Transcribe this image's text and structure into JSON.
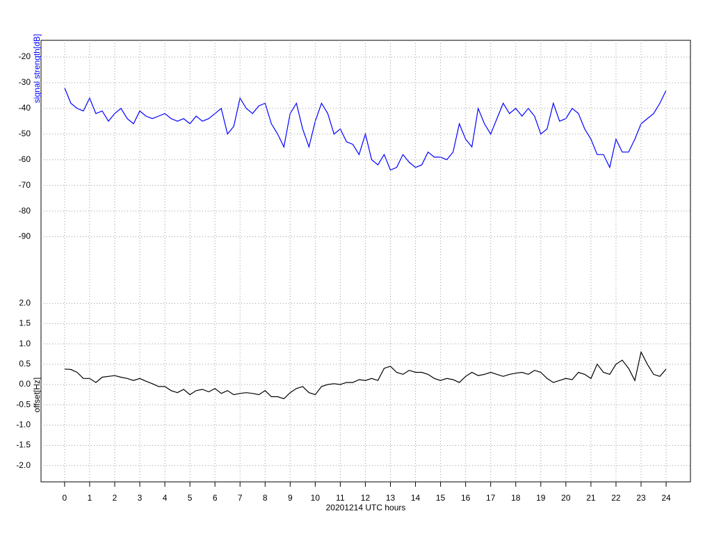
{
  "chart_data": [
    {
      "type": "line",
      "ylabel": "signal strength[dB]",
      "ylabel_color": "#0000ff",
      "grid": true,
      "xlim": [
        -0.94,
        24.97
      ],
      "ylim": [
        -95,
        -13.5
      ],
      "yticks": [
        -20,
        -30,
        -40,
        -50,
        -60,
        -70,
        -80,
        -90
      ],
      "x": [
        0,
        0.25,
        0.5,
        0.75,
        1,
        1.25,
        1.5,
        1.75,
        2,
        2.25,
        2.5,
        2.75,
        3,
        3.25,
        3.5,
        3.75,
        4,
        4.25,
        4.5,
        4.75,
        5,
        5.25,
        5.5,
        5.75,
        6,
        6.25,
        6.5,
        6.75,
        7,
        7.25,
        7.5,
        7.75,
        8,
        8.25,
        8.5,
        8.75,
        9,
        9.25,
        9.5,
        9.75,
        10,
        10.25,
        10.5,
        10.75,
        11,
        11.25,
        11.5,
        11.75,
        12,
        12.25,
        12.5,
        12.75,
        13,
        13.25,
        13.5,
        13.75,
        14,
        14.25,
        14.5,
        14.75,
        15,
        15.25,
        15.5,
        15.75,
        16,
        16.25,
        16.5,
        16.75,
        17,
        17.25,
        17.5,
        17.75,
        18,
        18.25,
        18.5,
        18.75,
        19,
        19.25,
        19.5,
        19.75,
        20,
        20.25,
        20.5,
        20.75,
        21,
        21.25,
        21.5,
        21.75,
        22,
        22.25,
        22.5,
        22.75,
        23,
        23.25,
        23.5,
        23.75,
        24
      ],
      "series": [
        {
          "color": "#0000ff",
          "values": [
            -32,
            -38,
            -40,
            -41,
            -36,
            -42,
            -41,
            -45,
            -42,
            -40,
            -44,
            -46,
            -41,
            -43,
            -44,
            -43,
            -42,
            -44,
            -45,
            -44,
            -46,
            -43,
            -45,
            -44,
            -42,
            -40,
            -50,
            -47,
            -36,
            -40,
            -42,
            -39,
            -38,
            -46,
            -50,
            -55,
            -42,
            -38,
            -48,
            -55,
            -45,
            -38,
            -42,
            -50,
            -48,
            -53,
            -54,
            -58,
            -50,
            -60,
            -62,
            -58,
            -64,
            -63,
            -58,
            -61,
            -63,
            -62,
            -57,
            -59,
            -59,
            -60,
            -57,
            -46,
            -52,
            -55,
            -40,
            -46,
            -50,
            -44,
            -38,
            -42,
            -40,
            -43,
            -40,
            -43,
            -50,
            -48,
            -38,
            -45,
            -44,
            -40,
            -42,
            -48,
            -52,
            -58,
            -58,
            -63,
            -52,
            -57,
            -57,
            -52,
            -46,
            -44,
            -42,
            -38,
            -33
          ]
        }
      ]
    },
    {
      "type": "line",
      "ylabel": "offset[Hz]",
      "ylabel_color": "#000000",
      "xlabel": "20201214 UTC hours",
      "grid": true,
      "xlim": [
        -0.94,
        24.97
      ],
      "xticks": [
        0,
        1,
        2,
        3,
        4,
        5,
        6,
        7,
        8,
        9,
        10,
        11,
        12,
        13,
        14,
        15,
        16,
        17,
        18,
        19,
        20,
        21,
        22,
        23,
        24
      ],
      "ylim": [
        -2.4,
        2.4
      ],
      "yticks": [
        {
          "value": 2,
          "label": "2.0"
        },
        1.5,
        {
          "value": 1,
          "label": "1.0"
        },
        0.5,
        {
          "value": 0,
          "label": "0.0"
        },
        -0.5,
        {
          "value": -1,
          "label": "-1.0"
        },
        -1.5,
        {
          "value": -2,
          "label": "-2.0"
        }
      ],
      "x": [
        0,
        0.25,
        0.5,
        0.75,
        1,
        1.25,
        1.5,
        1.75,
        2,
        2.25,
        2.5,
        2.75,
        3,
        3.25,
        3.5,
        3.75,
        4,
        4.25,
        4.5,
        4.75,
        5,
        5.25,
        5.5,
        5.75,
        6,
        6.25,
        6.5,
        6.75,
        7,
        7.25,
        7.5,
        7.75,
        8,
        8.25,
        8.5,
        8.75,
        9,
        9.25,
        9.5,
        9.75,
        10,
        10.25,
        10.5,
        10.75,
        11,
        11.25,
        11.5,
        11.75,
        12,
        12.25,
        12.5,
        12.75,
        13,
        13.25,
        13.5,
        13.75,
        14,
        14.25,
        14.5,
        14.75,
        15,
        15.25,
        15.5,
        15.75,
        16,
        16.25,
        16.5,
        16.75,
        17,
        17.25,
        17.5,
        17.75,
        18,
        18.25,
        18.5,
        18.75,
        19,
        19.25,
        19.5,
        19.75,
        20,
        20.25,
        20.5,
        20.75,
        21,
        21.25,
        21.5,
        21.75,
        22,
        22.25,
        22.5,
        22.75,
        23,
        23.25,
        23.5,
        23.75,
        24
      ],
      "series": [
        {
          "color": "#000000",
          "values": [
            0.38,
            0.37,
            0.3,
            0.15,
            0.15,
            0.05,
            0.18,
            0.2,
            0.22,
            0.18,
            0.15,
            0.1,
            0.15,
            0.08,
            0.02,
            -0.05,
            -0.05,
            -0.15,
            -0.2,
            -0.12,
            -0.25,
            -0.15,
            -0.12,
            -0.18,
            -0.1,
            -0.22,
            -0.15,
            -0.25,
            -0.22,
            -0.2,
            -0.22,
            -0.25,
            -0.15,
            -0.3,
            -0.3,
            -0.35,
            -0.2,
            -0.1,
            -0.05,
            -0.2,
            -0.25,
            -0.05,
            0,
            0.02,
            0,
            0.05,
            0.05,
            0.12,
            0.1,
            0.15,
            0.1,
            0.4,
            0.45,
            0.3,
            0.25,
            0.35,
            0.3,
            0.3,
            0.25,
            0.15,
            0.1,
            0.15,
            0.12,
            0.05,
            0.2,
            0.3,
            0.22,
            0.25,
            0.3,
            0.25,
            0.2,
            0.25,
            0.28,
            0.3,
            0.25,
            0.35,
            0.3,
            0.15,
            0.05,
            0.1,
            0.15,
            0.12,
            0.3,
            0.25,
            0.15,
            0.5,
            0.3,
            0.25,
            0.5,
            0.6,
            0.4,
            0.1,
            0.8,
            0.5,
            0.25,
            0.2,
            0.38
          ]
        }
      ]
    }
  ]
}
